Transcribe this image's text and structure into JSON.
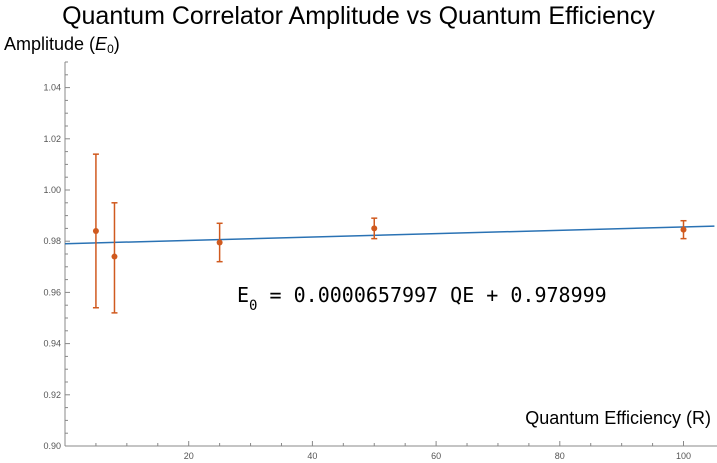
{
  "chart_data": {
    "type": "scatter",
    "title": "Quantum Correlator Amplitude vs Quantum Efficiency",
    "ylabel": {
      "text": "Amplitude (",
      "symbol": "E",
      "sub": "0",
      "suffix": ")"
    },
    "xlabel": "Quantum Efficiency (R)",
    "xlim": [
      0,
      100
    ],
    "ylim": [
      0.9,
      1.05
    ],
    "x_ticks": [
      20,
      40,
      60,
      80,
      100
    ],
    "y_ticks": [
      0.9,
      0.92,
      0.94,
      0.96,
      0.98,
      1.0,
      1.02,
      1.04
    ],
    "x_tick_labels": [
      "20",
      "40",
      "60",
      "80",
      "100"
    ],
    "y_tick_labels": [
      "0.90",
      "0.92",
      "0.94",
      "0.96",
      "0.98",
      "1.00",
      "1.02",
      "1.04"
    ],
    "grid": false,
    "points": [
      {
        "x": 5,
        "y": 0.984,
        "err_low": 0.954,
        "err_high": 1.014
      },
      {
        "x": 8,
        "y": 0.974,
        "err_low": 0.952,
        "err_high": 0.995
      },
      {
        "x": 25,
        "y": 0.9795,
        "err_low": 0.972,
        "err_high": 0.987
      },
      {
        "x": 50,
        "y": 0.985,
        "err_low": 0.981,
        "err_high": 0.989
      },
      {
        "x": 100,
        "y": 0.9845,
        "err_low": 0.981,
        "err_high": 0.988
      }
    ],
    "fit": {
      "slope": 6.57997e-05,
      "intercept": 0.978999
    },
    "equation": {
      "lhs": "E",
      "lhs_sub": "0",
      "equals": "=",
      "coef": "0.0000657997",
      "var": "QE",
      "plus": "+",
      "intercept": "0.978999"
    },
    "colors": {
      "points": "#d05a1f",
      "fit": "#2a72b4",
      "axis": "#888888"
    }
  }
}
